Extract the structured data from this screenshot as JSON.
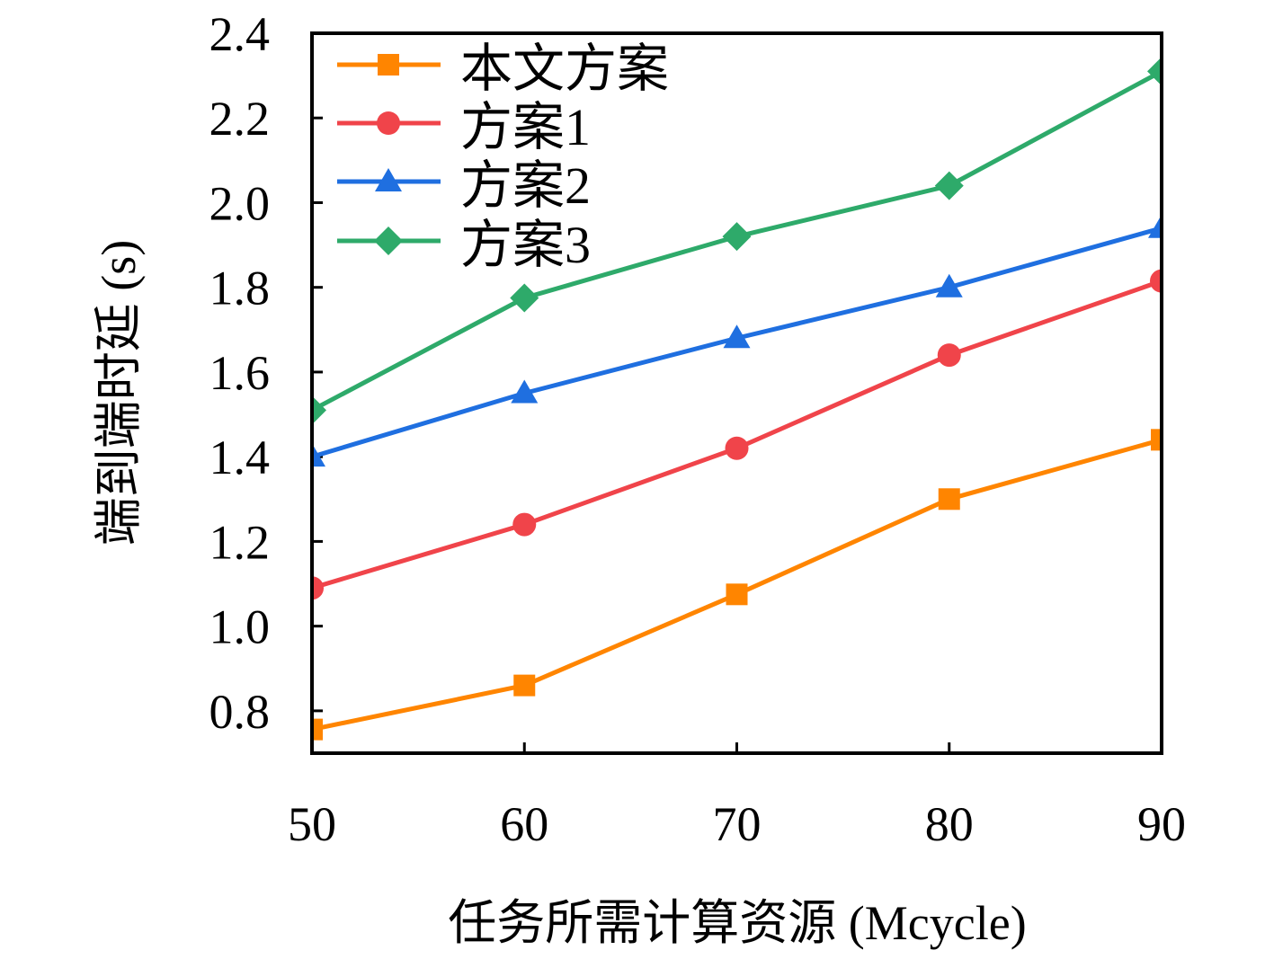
{
  "chart_data": {
    "type": "line",
    "title": "",
    "xlabel": "任务所需计算资源 (Mcycle)",
    "ylabel": "端到端时延 (s)",
    "x": [
      50,
      60,
      70,
      80,
      90
    ],
    "xlim": [
      50,
      90
    ],
    "ylim": [
      0.7,
      2.4
    ],
    "xticks": [
      "50",
      "60",
      "70",
      "80",
      "90"
    ],
    "xtick_values": [
      50,
      60,
      70,
      80,
      90
    ],
    "yticks": [
      "0.8",
      "1.0",
      "1.2",
      "1.4",
      "1.6",
      "1.8",
      "2.0",
      "2.2",
      "2.4"
    ],
    "ytick_values": [
      0.8,
      1.0,
      1.2,
      1.4,
      1.6,
      1.8,
      2.0,
      2.2,
      2.4
    ],
    "grid": false,
    "legend_position": "top-left",
    "series": [
      {
        "name": "本文方案",
        "color": "#ff8500",
        "marker": "square",
        "values": [
          0.756,
          0.86,
          1.075,
          1.3,
          1.44
        ]
      },
      {
        "name": "方案1",
        "color": "#f0444a",
        "marker": "circle",
        "values": [
          1.09,
          1.24,
          1.42,
          1.64,
          1.815
        ]
      },
      {
        "name": "方案2",
        "color": "#1f6fe0",
        "marker": "triangle",
        "values": [
          1.4,
          1.55,
          1.68,
          1.8,
          1.94
        ]
      },
      {
        "name": "方案3",
        "color": "#2eaa6a",
        "marker": "diamond",
        "values": [
          1.51,
          1.775,
          1.92,
          2.04,
          2.31
        ]
      }
    ]
  }
}
